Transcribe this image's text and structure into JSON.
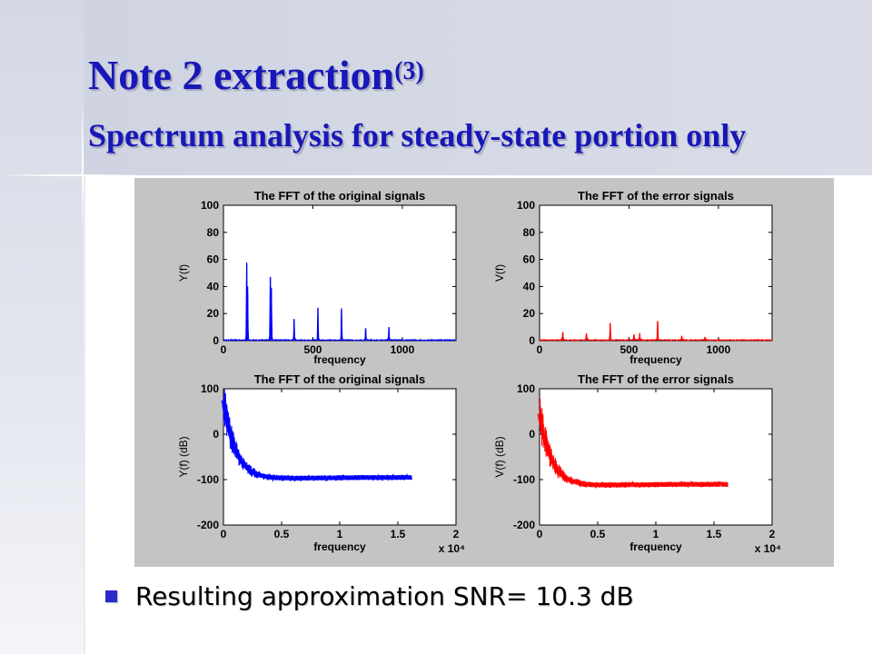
{
  "slide": {
    "title": "Note 2 extraction",
    "title_sup": "(3)",
    "subtitle": "Spectrum analysis for steady-state portion only",
    "bullet": "Resulting approximation SNR= 10.3 dB",
    "colors": {
      "title": "#1818b8",
      "bullet": "#2a2ac8",
      "figure_bg": "#c4c4c4"
    }
  },
  "chart_data": [
    {
      "type": "line",
      "title": "The FFT of the original signals",
      "xlabel": "frequency",
      "ylabel": "Y(f)",
      "xlim": [
        0,
        1300
      ],
      "ylim": [
        0,
        100
      ],
      "xticks": [
        0,
        500,
        1000
      ],
      "xtick_labels": [
        "0",
        "500",
        "1000"
      ],
      "yticks": [
        0,
        20,
        40,
        60,
        80,
        100
      ],
      "ytick_labels": [
        "0",
        "20",
        "40",
        "60",
        "80",
        "100"
      ],
      "x_exponent": "",
      "color": "#0000ff",
      "peaks": [
        {
          "x": 130,
          "y": 57
        },
        {
          "x": 135,
          "y": 40
        },
        {
          "x": 262,
          "y": 47
        },
        {
          "x": 268,
          "y": 38
        },
        {
          "x": 395,
          "y": 16
        },
        {
          "x": 528,
          "y": 24
        },
        {
          "x": 660,
          "y": 23
        },
        {
          "x": 795,
          "y": 9
        },
        {
          "x": 925,
          "y": 10
        }
      ],
      "noise_floor": 1
    },
    {
      "type": "line",
      "title": "The FFT of the error signals",
      "xlabel": "frequency",
      "ylabel": "V(f)",
      "xlim": [
        0,
        1300
      ],
      "ylim": [
        0,
        100
      ],
      "xticks": [
        0,
        500,
        1000
      ],
      "xtick_labels": [
        "0",
        "500",
        "1000"
      ],
      "yticks": [
        0,
        20,
        40,
        60,
        80,
        100
      ],
      "ytick_labels": [
        "0",
        "20",
        "40",
        "60",
        "80",
        "100"
      ],
      "x_exponent": "",
      "color": "#ff0000",
      "peaks": [
        {
          "x": 130,
          "y": 6
        },
        {
          "x": 262,
          "y": 5
        },
        {
          "x": 395,
          "y": 13
        },
        {
          "x": 528,
          "y": 4
        },
        {
          "x": 560,
          "y": 5
        },
        {
          "x": 660,
          "y": 14
        },
        {
          "x": 795,
          "y": 3
        },
        {
          "x": 925,
          "y": 2
        }
      ],
      "noise_floor": 1
    },
    {
      "type": "line",
      "title": "The FFT of the original signals",
      "xlabel": "frequency",
      "ylabel": "Y(f) (dB)",
      "xlim": [
        0,
        2
      ],
      "ylim": [
        -200,
        100
      ],
      "xticks": [
        0,
        0.5,
        1,
        1.5,
        2
      ],
      "xtick_labels": [
        "0",
        "0.5",
        "1",
        "1.5",
        "2"
      ],
      "yticks": [
        -200,
        -100,
        0,
        100
      ],
      "ytick_labels": [
        "-200",
        "-100",
        "0",
        "100"
      ],
      "x_exponent": "x 10⁴",
      "color": "#0000ff",
      "x_end": 1.62,
      "start_level": 75,
      "end_level": -95
    },
    {
      "type": "line",
      "title": "The FFT of the error signals",
      "xlabel": "frequency",
      "ylabel": "V(f) (dB)",
      "xlim": [
        0,
        2
      ],
      "ylim": [
        -200,
        100
      ],
      "xticks": [
        0,
        0.5,
        1,
        1.5,
        2
      ],
      "xtick_labels": [
        "0",
        "0.5",
        "1",
        "1.5",
        "2"
      ],
      "yticks": [
        -200,
        -100,
        0,
        100
      ],
      "ytick_labels": [
        "-200",
        "-100",
        "0",
        "100"
      ],
      "x_exponent": "x 10⁴",
      "color": "#ff0000",
      "x_end": 1.62,
      "start_level": 45,
      "end_level": -110
    }
  ]
}
